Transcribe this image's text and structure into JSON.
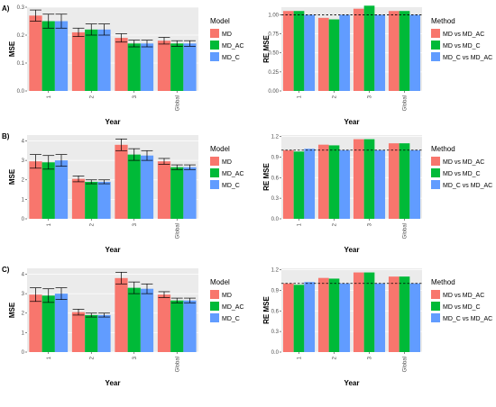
{
  "colors": {
    "MD": "#F8766D",
    "MD_AC": "#00BA38",
    "MD_C": "#619CFF",
    "panel": "#EBEBEB",
    "grid": "#ffffff",
    "ref_line": "#000000"
  },
  "legends": {
    "model": {
      "title": "Model",
      "items": [
        "MD",
        "MD_AC",
        "MD_C"
      ]
    },
    "method": {
      "title": "Method",
      "items": [
        "MD vs MD_AC",
        "MD vs MD_C",
        "MD_C vs MD_AC"
      ]
    }
  },
  "chart_data": [
    {
      "type": "bar",
      "row_label": "A)",
      "xlabel": "Year",
      "ylabel": "MSE",
      "categories": [
        "1",
        "2",
        "3",
        "Global"
      ],
      "ylim": [
        0,
        0.3
      ],
      "yticks": [
        "0.0",
        "0.1",
        "0.2",
        "0.3"
      ],
      "ytick_values": [
        0,
        0.1,
        0.2,
        0.3
      ],
      "error_bars": true,
      "legend": "model",
      "series": [
        {
          "name": "MD",
          "values": [
            0.27,
            0.21,
            0.19,
            0.18
          ],
          "errors": [
            0.02,
            0.015,
            0.015,
            0.012
          ]
        },
        {
          "name": "MD_AC",
          "values": [
            0.25,
            0.22,
            0.17,
            0.17
          ],
          "errors": [
            0.025,
            0.02,
            0.012,
            0.01
          ]
        },
        {
          "name": "MD_C",
          "values": [
            0.25,
            0.22,
            0.17,
            0.17
          ],
          "errors": [
            0.025,
            0.02,
            0.012,
            0.01
          ]
        }
      ]
    },
    {
      "type": "bar",
      "xlabel": "Year",
      "ylabel": "RE MSE",
      "categories": [
        "1",
        "2",
        "3",
        "Global"
      ],
      "ylim": [
        0,
        1.1
      ],
      "yticks": [
        "0.00",
        "0.25",
        "0.50",
        "0.75",
        "1.00"
      ],
      "ytick_values": [
        0,
        0.25,
        0.5,
        0.75,
        1.0
      ],
      "ref_line": 1.0,
      "legend": "method",
      "series": [
        {
          "name": "MD vs MD_AC",
          "values": [
            1.05,
            0.96,
            1.08,
            1.05
          ]
        },
        {
          "name": "MD vs MD_C",
          "values": [
            1.05,
            0.94,
            1.12,
            1.05
          ]
        },
        {
          "name": "MD_C vs MD_AC",
          "values": [
            1.0,
            1.0,
            1.0,
            1.0
          ]
        }
      ]
    },
    {
      "type": "bar",
      "row_label": "B)",
      "xlabel": "Year",
      "ylabel": "MSE",
      "categories": [
        "1",
        "2",
        "3",
        "Global"
      ],
      "ylim": [
        0,
        4.3
      ],
      "yticks": [
        "0",
        "1",
        "2",
        "3",
        "4"
      ],
      "ytick_values": [
        0,
        1,
        2,
        3,
        4
      ],
      "error_bars": true,
      "legend": "model",
      "series": [
        {
          "name": "MD",
          "values": [
            2.95,
            2.05,
            3.8,
            2.95
          ],
          "errors": [
            0.35,
            0.15,
            0.3,
            0.15
          ]
        },
        {
          "name": "MD_AC",
          "values": [
            2.9,
            1.9,
            3.3,
            2.65
          ],
          "errors": [
            0.35,
            0.1,
            0.3,
            0.12
          ]
        },
        {
          "name": "MD_C",
          "values": [
            3.0,
            1.9,
            3.25,
            2.65
          ],
          "errors": [
            0.3,
            0.1,
            0.25,
            0.12
          ]
        }
      ]
    },
    {
      "type": "bar",
      "xlabel": "Year",
      "ylabel": "RE MSE",
      "categories": [
        "1",
        "2",
        "3",
        "Global"
      ],
      "ylim": [
        0,
        1.22
      ],
      "yticks": [
        "0.0",
        "0.3",
        "0.6",
        "0.9",
        "1.2"
      ],
      "ytick_values": [
        0,
        0.3,
        0.6,
        0.9,
        1.2
      ],
      "ref_line": 1.0,
      "legend": "method",
      "series": [
        {
          "name": "MD vs MD_AC",
          "values": [
            1.0,
            1.08,
            1.16,
            1.1
          ]
        },
        {
          "name": "MD vs MD_C",
          "values": [
            0.98,
            1.07,
            1.16,
            1.1
          ]
        },
        {
          "name": "MD_C vs MD_AC",
          "values": [
            1.02,
            1.0,
            1.0,
            1.0
          ]
        }
      ]
    },
    {
      "type": "bar",
      "row_label": "C)",
      "xlabel": "Year",
      "ylabel": "MSE",
      "categories": [
        "1",
        "2",
        "3",
        "Global"
      ],
      "ylim": [
        0,
        4.3
      ],
      "yticks": [
        "0",
        "1",
        "2",
        "3",
        "4"
      ],
      "ytick_values": [
        0,
        1,
        2,
        3,
        4
      ],
      "error_bars": true,
      "legend": "model",
      "series": [
        {
          "name": "MD",
          "values": [
            2.95,
            2.05,
            3.8,
            2.95
          ],
          "errors": [
            0.35,
            0.15,
            0.3,
            0.15
          ]
        },
        {
          "name": "MD_AC",
          "values": [
            2.9,
            1.9,
            3.3,
            2.65
          ],
          "errors": [
            0.35,
            0.1,
            0.3,
            0.12
          ]
        },
        {
          "name": "MD_C",
          "values": [
            3.0,
            1.9,
            3.25,
            2.65
          ],
          "errors": [
            0.3,
            0.1,
            0.25,
            0.12
          ]
        }
      ]
    },
    {
      "type": "bar",
      "xlabel": "Year",
      "ylabel": "RE MSE",
      "categories": [
        "1",
        "2",
        "3",
        "Global"
      ],
      "ylim": [
        0,
        1.22
      ],
      "yticks": [
        "0.0",
        "0.3",
        "0.6",
        "0.9",
        "1.2"
      ],
      "ytick_values": [
        0,
        0.3,
        0.6,
        0.9,
        1.2
      ],
      "ref_line": 1.0,
      "legend": "method",
      "series": [
        {
          "name": "MD vs MD_AC",
          "values": [
            1.0,
            1.08,
            1.16,
            1.1
          ]
        },
        {
          "name": "MD vs MD_C",
          "values": [
            0.98,
            1.07,
            1.16,
            1.1
          ]
        },
        {
          "name": "MD_C vs MD_AC",
          "values": [
            1.02,
            1.0,
            1.0,
            1.0
          ]
        }
      ]
    }
  ]
}
